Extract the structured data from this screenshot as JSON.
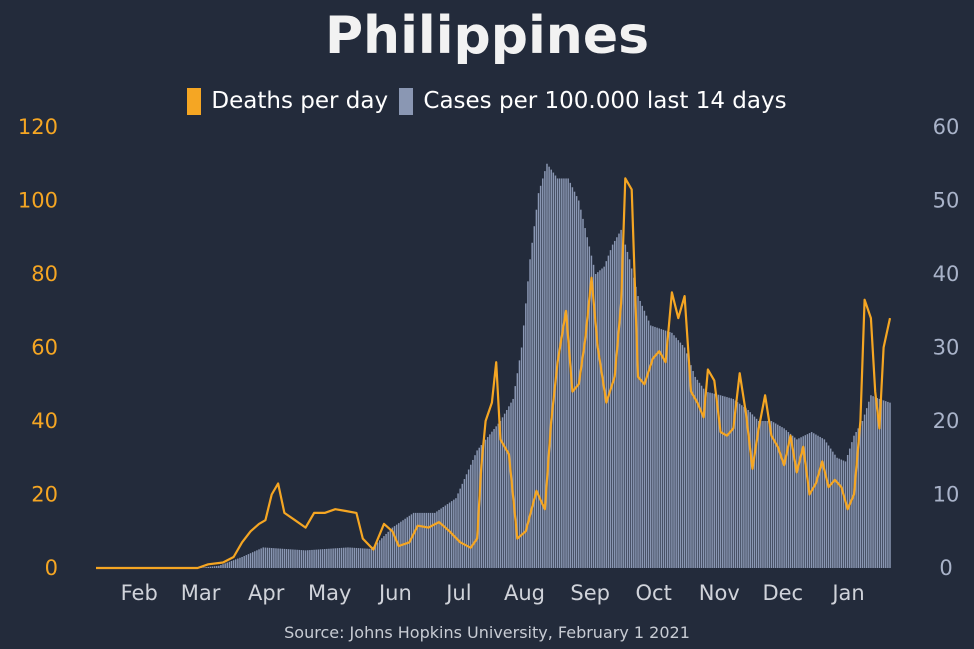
{
  "chart_data": {
    "type": "bar+line",
    "title": "Philippines",
    "source": "Source: Johns Hopkins University, February 1 2021",
    "colors": {
      "deaths": "#f5a623",
      "cases": "#8a97b3",
      "background": "#232b3b"
    },
    "legend": [
      {
        "key": "deaths",
        "label": "Deaths per day"
      },
      {
        "key": "cases",
        "label": "Cases per 100.000 last 14 days"
      }
    ],
    "y_left": {
      "ylim": [
        0,
        120
      ],
      "ticks": [
        "0",
        "20",
        "40",
        "60",
        "80",
        "100",
        "120"
      ]
    },
    "y_right": {
      "ylim": [
        0,
        60
      ],
      "ticks": [
        "0",
        "10",
        "20",
        "30",
        "40",
        "50",
        "60"
      ]
    },
    "x_ticks": [
      "Feb",
      "Mar",
      "Apr",
      "May",
      "Jun",
      "Jul",
      "Aug",
      "Sep",
      "Oct",
      "Nov",
      "Dec",
      "Jan"
    ],
    "grid": false,
    "series": [
      {
        "name": "Cases per 100.000 last 14 days",
        "axis": "right",
        "type": "bar",
        "points": [
          [
            "2020-01-22",
            0
          ],
          [
            "2020-03-10",
            0
          ],
          [
            "2020-03-20",
            0.3
          ],
          [
            "2020-03-31",
            1.5
          ],
          [
            "2020-04-10",
            2.8
          ],
          [
            "2020-04-20",
            2.6
          ],
          [
            "2020-04-30",
            2.4
          ],
          [
            "2020-05-10",
            2.6
          ],
          [
            "2020-05-20",
            2.8
          ],
          [
            "2020-05-31",
            2.6
          ],
          [
            "2020-06-10",
            5.5
          ],
          [
            "2020-06-20",
            7.5
          ],
          [
            "2020-06-30",
            7.5
          ],
          [
            "2020-07-10",
            9.5
          ],
          [
            "2020-07-20",
            16
          ],
          [
            "2020-07-31",
            20
          ],
          [
            "2020-08-06",
            23
          ],
          [
            "2020-08-10",
            30
          ],
          [
            "2020-08-14",
            42
          ],
          [
            "2020-08-18",
            51
          ],
          [
            "2020-08-22",
            55
          ],
          [
            "2020-08-27",
            53
          ],
          [
            "2020-09-01",
            53
          ],
          [
            "2020-09-06",
            50
          ],
          [
            "2020-09-10",
            45
          ],
          [
            "2020-09-14",
            40
          ],
          [
            "2020-09-18",
            41
          ],
          [
            "2020-09-22",
            44
          ],
          [
            "2020-09-26",
            46
          ],
          [
            "2020-09-30",
            42
          ],
          [
            "2020-10-04",
            37
          ],
          [
            "2020-10-10",
            33
          ],
          [
            "2020-10-15",
            32.5
          ],
          [
            "2020-10-20",
            32
          ],
          [
            "2020-10-26",
            30
          ],
          [
            "2020-10-31",
            26
          ],
          [
            "2020-11-05",
            24
          ],
          [
            "2020-11-12",
            23.5
          ],
          [
            "2020-11-18",
            23
          ],
          [
            "2020-11-25",
            21.5
          ],
          [
            "2020-11-30",
            20
          ],
          [
            "2020-12-06",
            20
          ],
          [
            "2020-12-12",
            19
          ],
          [
            "2020-12-18",
            17.5
          ],
          [
            "2020-12-25",
            18.5
          ],
          [
            "2020-12-31",
            17.5
          ],
          [
            "2021-01-06",
            15
          ],
          [
            "2021-01-10",
            14.5
          ],
          [
            "2021-01-14",
            18
          ],
          [
            "2021-01-18",
            20
          ],
          [
            "2021-01-22",
            23.5
          ],
          [
            "2021-01-26",
            23
          ],
          [
            "2021-01-31",
            22.5
          ]
        ]
      },
      {
        "name": "Deaths per day",
        "axis": "left",
        "type": "line",
        "points": [
          [
            "2020-01-22",
            0
          ],
          [
            "2020-03-10",
            0
          ],
          [
            "2020-03-15",
            1
          ],
          [
            "2020-03-22",
            1.5
          ],
          [
            "2020-03-27",
            3
          ],
          [
            "2020-03-31",
            7
          ],
          [
            "2020-04-04",
            10
          ],
          [
            "2020-04-08",
            12
          ],
          [
            "2020-04-11",
            13
          ],
          [
            "2020-04-14",
            20
          ],
          [
            "2020-04-17",
            23
          ],
          [
            "2020-04-20",
            15
          ],
          [
            "2020-04-25",
            13
          ],
          [
            "2020-04-30",
            11
          ],
          [
            "2020-05-04",
            15
          ],
          [
            "2020-05-09",
            15
          ],
          [
            "2020-05-14",
            16
          ],
          [
            "2020-05-19",
            15.5
          ],
          [
            "2020-05-24",
            15
          ],
          [
            "2020-05-27",
            8
          ],
          [
            "2020-06-01",
            5
          ],
          [
            "2020-06-06",
            12
          ],
          [
            "2020-06-10",
            10
          ],
          [
            "2020-06-13",
            6
          ],
          [
            "2020-06-18",
            7
          ],
          [
            "2020-06-22",
            11.5
          ],
          [
            "2020-06-27",
            11
          ],
          [
            "2020-07-02",
            12.5
          ],
          [
            "2020-07-07",
            10
          ],
          [
            "2020-07-12",
            7
          ],
          [
            "2020-07-17",
            5.5
          ],
          [
            "2020-07-20",
            8
          ],
          [
            "2020-07-22",
            28
          ],
          [
            "2020-07-24",
            40
          ],
          [
            "2020-07-27",
            45
          ],
          [
            "2020-07-29",
            56
          ],
          [
            "2020-07-31",
            35
          ],
          [
            "2020-08-04",
            31
          ],
          [
            "2020-08-08",
            8
          ],
          [
            "2020-08-12",
            10
          ],
          [
            "2020-08-17",
            21
          ],
          [
            "2020-08-21",
            16
          ],
          [
            "2020-08-24",
            40
          ],
          [
            "2020-08-27",
            56
          ],
          [
            "2020-08-31",
            70
          ],
          [
            "2020-09-03",
            48
          ],
          [
            "2020-09-06",
            50
          ],
          [
            "2020-09-09",
            62
          ],
          [
            "2020-09-12",
            79
          ],
          [
            "2020-09-15",
            60
          ],
          [
            "2020-09-19",
            45
          ],
          [
            "2020-09-23",
            52
          ],
          [
            "2020-09-26",
            72
          ],
          [
            "2020-09-28",
            106
          ],
          [
            "2020-10-01",
            103
          ],
          [
            "2020-10-04",
            52
          ],
          [
            "2020-10-07",
            50
          ],
          [
            "2020-10-11",
            57
          ],
          [
            "2020-10-14",
            59
          ],
          [
            "2020-10-17",
            56
          ],
          [
            "2020-10-20",
            75
          ],
          [
            "2020-10-23",
            68
          ],
          [
            "2020-10-26",
            74
          ],
          [
            "2020-10-29",
            48
          ],
          [
            "2020-11-01",
            45
          ],
          [
            "2020-11-04",
            41
          ],
          [
            "2020-11-06",
            54
          ],
          [
            "2020-11-09",
            51
          ],
          [
            "2020-11-12",
            37
          ],
          [
            "2020-11-15",
            36
          ],
          [
            "2020-11-18",
            38
          ],
          [
            "2020-11-21",
            53
          ],
          [
            "2020-11-24",
            42
          ],
          [
            "2020-11-27",
            27
          ],
          [
            "2020-11-30",
            38
          ],
          [
            "2020-12-03",
            47
          ],
          [
            "2020-12-06",
            36
          ],
          [
            "2020-12-09",
            33
          ],
          [
            "2020-12-12",
            28
          ],
          [
            "2020-12-15",
            36
          ],
          [
            "2020-12-18",
            26
          ],
          [
            "2020-12-21",
            33
          ],
          [
            "2020-12-24",
            20
          ],
          [
            "2020-12-27",
            23
          ],
          [
            "2020-12-30",
            29
          ],
          [
            "2021-01-02",
            22
          ],
          [
            "2021-01-05",
            24
          ],
          [
            "2021-01-08",
            22
          ],
          [
            "2021-01-11",
            16
          ],
          [
            "2021-01-14",
            20
          ],
          [
            "2021-01-17",
            40
          ],
          [
            "2021-01-19",
            73
          ],
          [
            "2021-01-22",
            68
          ],
          [
            "2021-01-24",
            48
          ],
          [
            "2021-01-26",
            38
          ],
          [
            "2021-01-28",
            60
          ],
          [
            "2021-01-31",
            68
          ]
        ]
      }
    ]
  }
}
